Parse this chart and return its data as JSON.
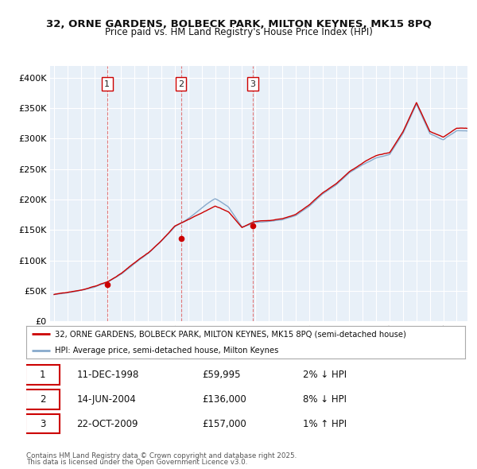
{
  "title1": "32, ORNE GARDENS, BOLBECK PARK, MILTON KEYNES, MK15 8PQ",
  "title2": "Price paid vs. HM Land Registry's House Price Index (HPI)",
  "background_color": "#ffffff",
  "plot_bg_color": "#e8f0f8",
  "grid_color": "#ffffff",
  "red_line_color": "#cc0000",
  "blue_line_color": "#88aacc",
  "sale_marker_color": "#cc0000",
  "legend_label_red": "32, ORNE GARDENS, BOLBECK PARK, MILTON KEYNES, MK15 8PQ (semi-detached house)",
  "legend_label_blue": "HPI: Average price, semi-detached house, Milton Keynes",
  "transactions": [
    {
      "num": 1,
      "date": "11-DEC-1998",
      "price": 59995,
      "pct": "2%",
      "dir": "↓",
      "x_year": 1998.95
    },
    {
      "num": 2,
      "date": "14-JUN-2004",
      "price": 136000,
      "pct": "8%",
      "dir": "↓",
      "x_year": 2004.45
    },
    {
      "num": 3,
      "date": "22-OCT-2009",
      "price": 157000,
      "pct": "1%",
      "dir": "↑",
      "x_year": 2009.8
    }
  ],
  "footer1": "Contains HM Land Registry data © Crown copyright and database right 2025.",
  "footer2": "This data is licensed under the Open Government Licence v3.0.",
  "ylim": [
    0,
    420000
  ],
  "yticks": [
    0,
    50000,
    100000,
    150000,
    200000,
    250000,
    300000,
    350000,
    400000
  ],
  "xlim_start": 1994.7,
  "xlim_end": 2025.8
}
